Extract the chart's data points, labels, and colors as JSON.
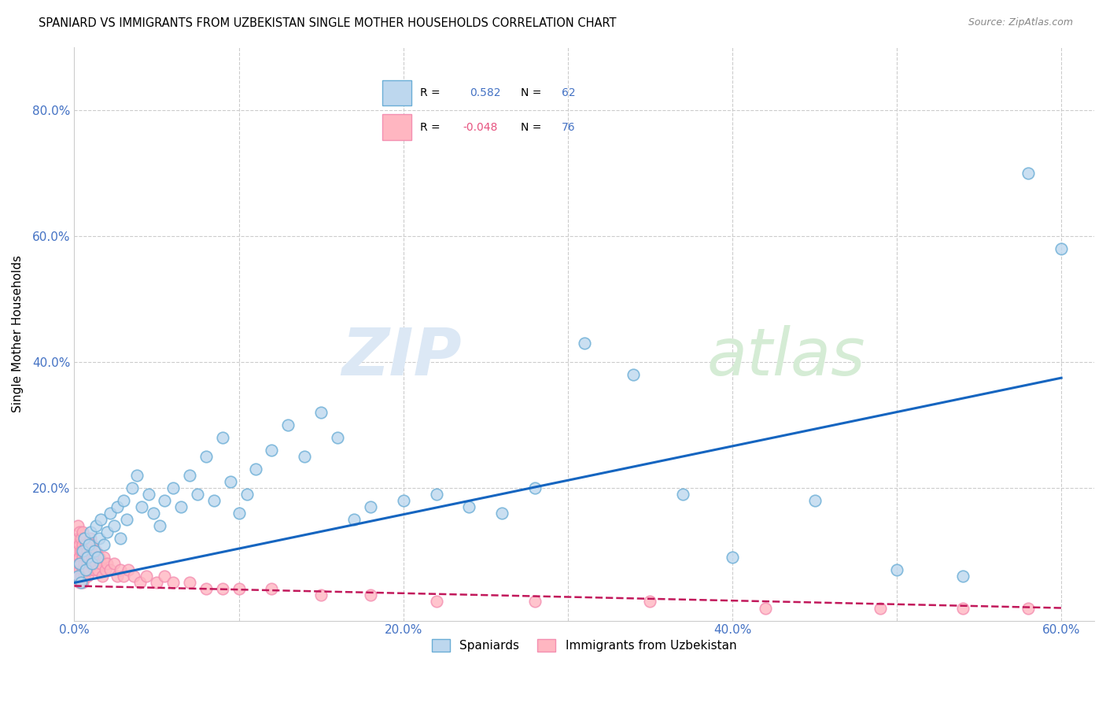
{
  "title": "SPANIARD VS IMMIGRANTS FROM UZBEKISTAN SINGLE MOTHER HOUSEHOLDS CORRELATION CHART",
  "source": "Source: ZipAtlas.com",
  "ylabel": "Single Mother Households",
  "xlim": [
    0.0,
    0.62
  ],
  "ylim": [
    -0.01,
    0.9
  ],
  "xtick_positions": [
    0.0,
    0.1,
    0.2,
    0.3,
    0.4,
    0.5,
    0.6
  ],
  "xtick_labels": [
    "0.0%",
    "",
    "20.0%",
    "",
    "40.0%",
    "",
    "60.0%"
  ],
  "ytick_positions": [
    0.0,
    0.2,
    0.4,
    0.6,
    0.8
  ],
  "ytick_labels": [
    "",
    "20.0%",
    "40.0%",
    "60.0%",
    "80.0%"
  ],
  "blue_face": "#bdd7ee",
  "blue_edge": "#6baed6",
  "blue_line": "#1565c0",
  "pink_face": "#ffb6c1",
  "pink_edge": "#f48fb1",
  "pink_line": "#c2185b",
  "grid_color": "#cccccc",
  "tick_color": "#4472c4",
  "watermark_zip_color": "#dce8f5",
  "watermark_atlas_color": "#d5ecd5",
  "legend_face": "#f5f5f5",
  "legend_border": "#cccccc",
  "blue_R": 0.582,
  "blue_N": 62,
  "pink_R": -0.048,
  "pink_N": 76,
  "blue_line_y0": 0.05,
  "blue_line_y1": 0.375,
  "pink_line_y0": 0.045,
  "pink_line_y1": 0.01,
  "spaniard_x": [
    0.002,
    0.003,
    0.004,
    0.005,
    0.006,
    0.007,
    0.008,
    0.009,
    0.01,
    0.011,
    0.012,
    0.013,
    0.014,
    0.015,
    0.016,
    0.018,
    0.02,
    0.022,
    0.024,
    0.026,
    0.028,
    0.03,
    0.032,
    0.035,
    0.038,
    0.041,
    0.045,
    0.048,
    0.052,
    0.055,
    0.06,
    0.065,
    0.07,
    0.075,
    0.08,
    0.085,
    0.09,
    0.095,
    0.1,
    0.105,
    0.11,
    0.12,
    0.13,
    0.14,
    0.15,
    0.16,
    0.17,
    0.18,
    0.2,
    0.22,
    0.24,
    0.26,
    0.28,
    0.31,
    0.34,
    0.37,
    0.4,
    0.45,
    0.5,
    0.54,
    0.58,
    0.6
  ],
  "spaniard_y": [
    0.06,
    0.08,
    0.05,
    0.1,
    0.12,
    0.07,
    0.09,
    0.11,
    0.13,
    0.08,
    0.1,
    0.14,
    0.09,
    0.12,
    0.15,
    0.11,
    0.13,
    0.16,
    0.14,
    0.17,
    0.12,
    0.18,
    0.15,
    0.2,
    0.22,
    0.17,
    0.19,
    0.16,
    0.14,
    0.18,
    0.2,
    0.17,
    0.22,
    0.19,
    0.25,
    0.18,
    0.28,
    0.21,
    0.16,
    0.19,
    0.23,
    0.26,
    0.3,
    0.25,
    0.32,
    0.28,
    0.15,
    0.17,
    0.18,
    0.19,
    0.17,
    0.16,
    0.2,
    0.43,
    0.38,
    0.19,
    0.09,
    0.18,
    0.07,
    0.06,
    0.7,
    0.58
  ],
  "uzbek_x": [
    0.001,
    0.001,
    0.001,
    0.002,
    0.002,
    0.002,
    0.002,
    0.002,
    0.003,
    0.003,
    0.003,
    0.003,
    0.003,
    0.004,
    0.004,
    0.004,
    0.004,
    0.005,
    0.005,
    0.005,
    0.005,
    0.005,
    0.006,
    0.006,
    0.006,
    0.006,
    0.007,
    0.007,
    0.007,
    0.008,
    0.008,
    0.008,
    0.009,
    0.009,
    0.01,
    0.01,
    0.01,
    0.011,
    0.011,
    0.012,
    0.012,
    0.013,
    0.013,
    0.014,
    0.015,
    0.016,
    0.017,
    0.018,
    0.019,
    0.02,
    0.022,
    0.024,
    0.026,
    0.028,
    0.03,
    0.033,
    0.036,
    0.04,
    0.044,
    0.05,
    0.055,
    0.06,
    0.07,
    0.08,
    0.09,
    0.1,
    0.12,
    0.15,
    0.18,
    0.22,
    0.28,
    0.35,
    0.42,
    0.49,
    0.54,
    0.58
  ],
  "uzbek_y": [
    0.07,
    0.09,
    0.11,
    0.06,
    0.08,
    0.1,
    0.12,
    0.14,
    0.07,
    0.09,
    0.11,
    0.13,
    0.05,
    0.08,
    0.1,
    0.12,
    0.06,
    0.07,
    0.09,
    0.11,
    0.13,
    0.05,
    0.08,
    0.1,
    0.06,
    0.12,
    0.07,
    0.09,
    0.11,
    0.08,
    0.1,
    0.06,
    0.09,
    0.07,
    0.08,
    0.1,
    0.12,
    0.09,
    0.11,
    0.07,
    0.09,
    0.08,
    0.1,
    0.07,
    0.09,
    0.08,
    0.06,
    0.09,
    0.07,
    0.08,
    0.07,
    0.08,
    0.06,
    0.07,
    0.06,
    0.07,
    0.06,
    0.05,
    0.06,
    0.05,
    0.06,
    0.05,
    0.05,
    0.04,
    0.04,
    0.04,
    0.04,
    0.03,
    0.03,
    0.02,
    0.02,
    0.02,
    0.01,
    0.01,
    0.01,
    0.01
  ]
}
